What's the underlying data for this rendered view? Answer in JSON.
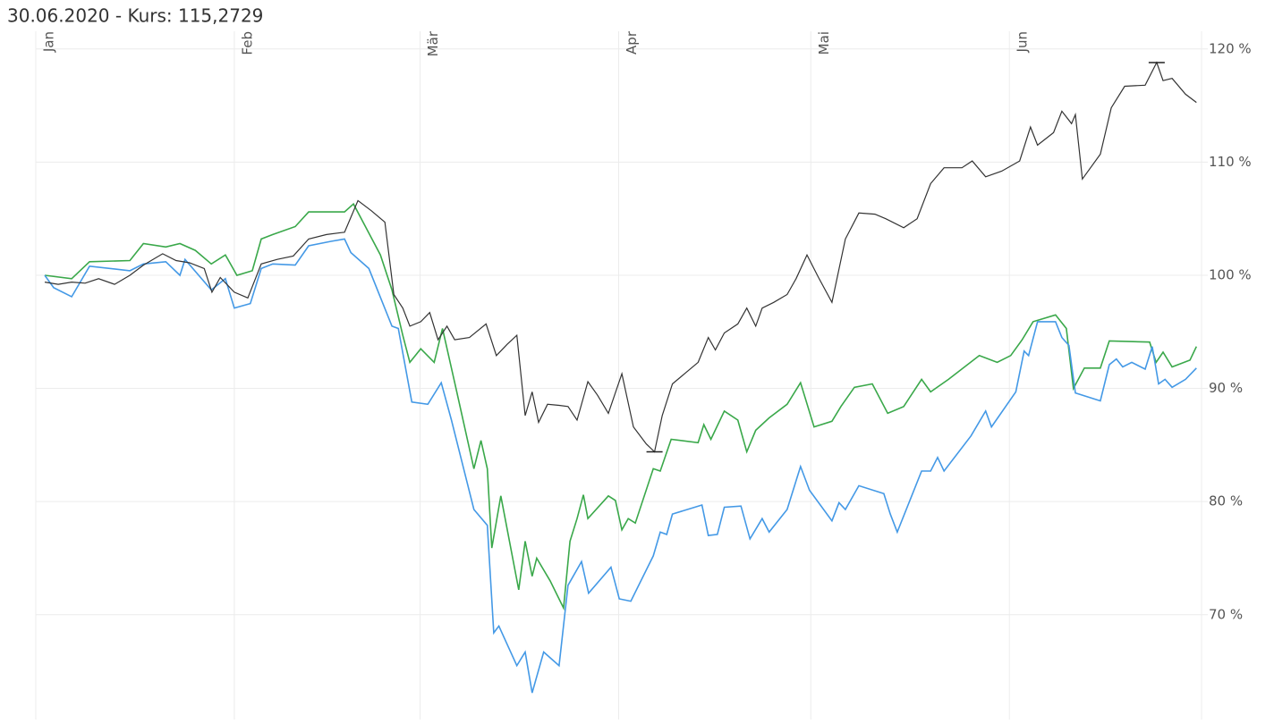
{
  "chart_data": {
    "type": "line",
    "title": "30.06.2020  - Kurs: 115,2729",
    "xlim": [
      0,
      182
    ],
    "xticks": [
      {
        "value": 0,
        "label": "Jan"
      },
      {
        "value": 31,
        "label": "Feb"
      },
      {
        "value": 60,
        "label": "Mär"
      },
      {
        "value": 91,
        "label": "Apr"
      },
      {
        "value": 121,
        "label": "Mai"
      },
      {
        "value": 152,
        "label": "Jun"
      }
    ],
    "ylim": [
      60.74,
      121.56
    ],
    "yticks": [
      {
        "value": 70,
        "label": "70 %"
      },
      {
        "value": 80,
        "label": "80 %"
      },
      {
        "value": 90,
        "label": "90 %"
      },
      {
        "value": 100,
        "label": "100 %"
      },
      {
        "value": 110,
        "label": "110 %"
      },
      {
        "value": 120,
        "label": "120 %"
      }
    ],
    "grid": true,
    "series": [
      {
        "color": "#3aa84a",
        "x": [
          1.4,
          5.6,
          8.4,
          14.7,
          16.8,
          20.3,
          22.5,
          24.9,
          27.4,
          29.6,
          31.4,
          33.8,
          35.2,
          37,
          40.5,
          42.6,
          48.2,
          49.6,
          53.8,
          55.6,
          57.3,
          58.4,
          60.1,
          62.2,
          63.5,
          65.6,
          68.4,
          69.5,
          70.5,
          71.2,
          72.6,
          75.4,
          76.4,
          77.5,
          78.2,
          80.3,
          82.4,
          83.4,
          84.5,
          85.5,
          86.2,
          89.4,
          90.5,
          91.5,
          92.5,
          93.6,
          96.4,
          97.5,
          99.2,
          103.4,
          104.3,
          105.4,
          107.5,
          109.6,
          111,
          112.4,
          114.5,
          117.3,
          119.4,
          121.5,
          124.3,
          125.7,
          127.8,
          130.6,
          133,
          135.5,
          138.3,
          139.7,
          142.5,
          147.3,
          150.1,
          152.2,
          154,
          155.7,
          159.2,
          160.9,
          162,
          163.7,
          166.2,
          167.6,
          173.9,
          174.9,
          176,
          177.4,
          180.2,
          181.2
        ],
        "values": [
          100,
          99.7,
          101.2,
          101.3,
          102.8,
          102.5,
          102.8,
          102.2,
          101,
          101.8,
          100,
          100.4,
          103.2,
          103.6,
          104.3,
          105.6,
          105.6,
          106.3,
          101.8,
          98.7,
          94.7,
          92.3,
          93.5,
          92.3,
          95.3,
          90,
          82.9,
          85.4,
          82.9,
          75.9,
          80.5,
          72.2,
          76.5,
          73.4,
          75,
          73,
          70.6,
          76.5,
          78.5,
          80.6,
          78.5,
          80.5,
          80.1,
          77.5,
          78.5,
          78.1,
          82.9,
          82.7,
          85.5,
          85.2,
          86.8,
          85.5,
          88,
          87.2,
          84.4,
          86.3,
          87.4,
          88.6,
          90.5,
          86.6,
          87.1,
          88.4,
          90.1,
          90.4,
          87.8,
          88.4,
          90.8,
          89.7,
          90.8,
          92.9,
          92.3,
          92.9,
          94.3,
          95.9,
          96.5,
          95.3,
          90,
          91.8,
          91.8,
          94.2,
          94.1,
          92.3,
          93.2,
          91.9,
          92.5,
          93.7
        ]
      },
      {
        "color": "#4499e6",
        "x": [
          1.4,
          2.8,
          5.6,
          8.4,
          14.7,
          16.8,
          20.3,
          22.5,
          23.3,
          27.4,
          29.6,
          31,
          33.5,
          35.2,
          37,
          40.5,
          42.6,
          46.1,
          48.2,
          49.2,
          52,
          55.6,
          56.6,
          58.7,
          61.2,
          63.3,
          64.9,
          68.4,
          70.5,
          71.5,
          72.3,
          75.1,
          76.4,
          77.5,
          79.3,
          81.7,
          83.1,
          85.2,
          86.3,
          89.8,
          91.1,
          92.9,
          96.4,
          97.5,
          98.5,
          99.4,
          104,
          105,
          106.4,
          107.5,
          110.1,
          111.5,
          113.4,
          114.5,
          117.3,
          119.4,
          120.8,
          124.3,
          125.4,
          126.4,
          128.5,
          132.4,
          133.4,
          134.5,
          138.3,
          139.7,
          140.8,
          141.8,
          146,
          148.3,
          149.2,
          153,
          154.3,
          155,
          156.4,
          159.2,
          160.2,
          161.3,
          162.3,
          166.2,
          167.6,
          168.7,
          169.7,
          171.1,
          173.2,
          174.3,
          175.3,
          176.3,
          177.4,
          179.5,
          181.2
        ],
        "values": [
          100,
          98.9,
          98.1,
          100.8,
          100.4,
          101,
          101.2,
          100,
          101.4,
          98.7,
          99.7,
          97.1,
          97.5,
          100.6,
          101,
          100.9,
          102.6,
          103,
          103.2,
          102,
          100.6,
          95.5,
          95.3,
          88.8,
          88.6,
          90.5,
          87.2,
          79.3,
          77.9,
          68.4,
          69,
          65.5,
          66.7,
          63.1,
          66.7,
          65.5,
          72.6,
          74.7,
          71.9,
          74.2,
          71.4,
          71.2,
          75.2,
          77.3,
          77.1,
          78.9,
          79.7,
          77,
          77.1,
          79.5,
          79.6,
          76.7,
          78.5,
          77.3,
          79.3,
          83.1,
          81,
          78.3,
          79.9,
          79.3,
          81.4,
          80.7,
          78.9,
          77.3,
          82.7,
          82.7,
          83.9,
          82.7,
          85.8,
          88,
          86.6,
          89.7,
          93.3,
          92.9,
          95.9,
          95.9,
          94.5,
          93.8,
          89.6,
          88.9,
          92.1,
          92.6,
          91.9,
          92.3,
          91.7,
          93.7,
          90.4,
          90.8,
          90.1,
          90.8,
          91.8
        ]
      },
      {
        "color": "#333333",
        "x": [
          1.4,
          3.5,
          5.6,
          7.7,
          9.8,
          12.3,
          14.7,
          16.8,
          19.8,
          21.9,
          24,
          26.3,
          27.5,
          28.8,
          31,
          33.1,
          35.2,
          37.7,
          40.2,
          42.6,
          45.4,
          48.2,
          50.3,
          52.4,
          54.5,
          55.9,
          57.3,
          58.4,
          60.1,
          61.5,
          62.8,
          64.2,
          65.4,
          67.7,
          70.3,
          71.9,
          73.6,
          75.1,
          76.4,
          77.5,
          78.5,
          79.9,
          81.7,
          83.1,
          84.5,
          86.2,
          87.7,
          89.4,
          91.5,
          93.3,
          95.3,
          96.6,
          97.8,
          99.4,
          101.3,
          103.4,
          105,
          106.1,
          107.5,
          109.6,
          111,
          112.4,
          113.4,
          115.2,
          117.3,
          118.7,
          120.4,
          122.2,
          124.3,
          126.4,
          128.5,
          131,
          132.7,
          135.5,
          137.6,
          139.7,
          141.8,
          144.6,
          146.2,
          148.3,
          150.8,
          153.6,
          155.3,
          156.4,
          158.9,
          160.2,
          161.7,
          162.3,
          163.4,
          166.2,
          167.9,
          170,
          173.2,
          175,
          176,
          177.4,
          179.5,
          181.2
        ],
        "values": [
          99.4,
          99.2,
          99.4,
          99.3,
          99.7,
          99.2,
          100,
          100.9,
          101.9,
          101.3,
          101.1,
          100.6,
          98.5,
          99.8,
          98.5,
          98,
          101,
          101.4,
          101.7,
          103.2,
          103.6,
          103.8,
          106.6,
          105.7,
          104.7,
          98.3,
          97.1,
          95.5,
          95.9,
          96.7,
          94.3,
          95.5,
          94.3,
          94.5,
          95.7,
          92.9,
          93.9,
          94.7,
          87.6,
          89.7,
          87,
          88.6,
          88.5,
          88.4,
          87.2,
          90.6,
          89.4,
          87.8,
          91.3,
          86.6,
          85.1,
          84.4,
          87.6,
          90.4,
          91.3,
          92.3,
          94.5,
          93.4,
          94.9,
          95.7,
          97.1,
          95.5,
          97.1,
          97.6,
          98.3,
          99.7,
          101.8,
          99.8,
          97.6,
          103.2,
          105.5,
          105.4,
          105,
          104.2,
          105,
          108.1,
          109.5,
          109.5,
          110.1,
          108.7,
          109.2,
          110.1,
          113.1,
          111.5,
          112.6,
          114.5,
          113.4,
          114.2,
          108.5,
          110.7,
          114.8,
          116.7,
          116.8,
          118.8,
          117.2,
          117.4,
          116,
          115.27
        ]
      }
    ]
  }
}
